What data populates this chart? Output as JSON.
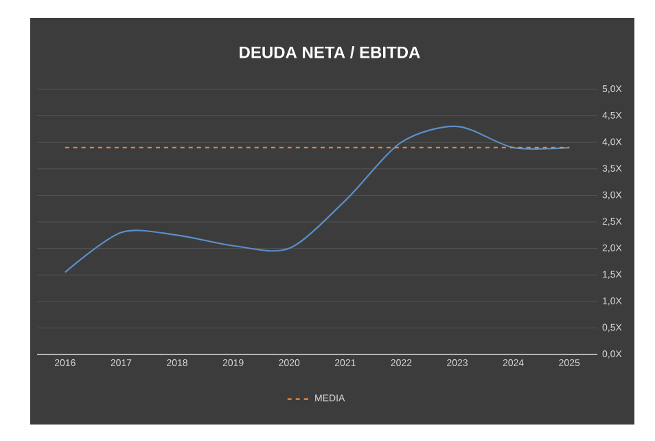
{
  "chart_data": {
    "type": "line",
    "title": "DEUDA NETA / EBITDA",
    "categories": [
      "2016",
      "2017",
      "2018",
      "2019",
      "2020",
      "2021",
      "2022",
      "2023",
      "2024",
      "2025"
    ],
    "series": [
      {
        "color": "#5b8fc9",
        "line_style": "solid",
        "values": [
          1.55,
          2.3,
          2.25,
          2.05,
          2.0,
          2.9,
          4.0,
          4.3,
          3.9,
          3.9
        ]
      },
      {
        "name": "MEDIA",
        "color": "#e8823a",
        "line_style": "dashed",
        "values": [
          3.9,
          3.9,
          3.9,
          3.9,
          3.9,
          3.9,
          3.9,
          3.9,
          3.9,
          3.9
        ]
      }
    ],
    "ylim": [
      0,
      5
    ],
    "yticks": [
      {
        "value": 0,
        "label": "0,0X"
      },
      {
        "value": 0.5,
        "label": "0,5X"
      },
      {
        "value": 1,
        "label": "1,0X"
      },
      {
        "value": 1.5,
        "label": "1,5X"
      },
      {
        "value": 2,
        "label": "2,0X"
      },
      {
        "value": 2.5,
        "label": "2,5X"
      },
      {
        "value": 3,
        "label": "3,0X"
      },
      {
        "value": 3.5,
        "label": "3,5X"
      },
      {
        "value": 4,
        "label": "4,0X"
      },
      {
        "value": 4.5,
        "label": "4,5X"
      },
      {
        "value": 5,
        "label": "5,0X"
      }
    ],
    "grid": "y",
    "legend": "bottom",
    "marker": "none"
  }
}
